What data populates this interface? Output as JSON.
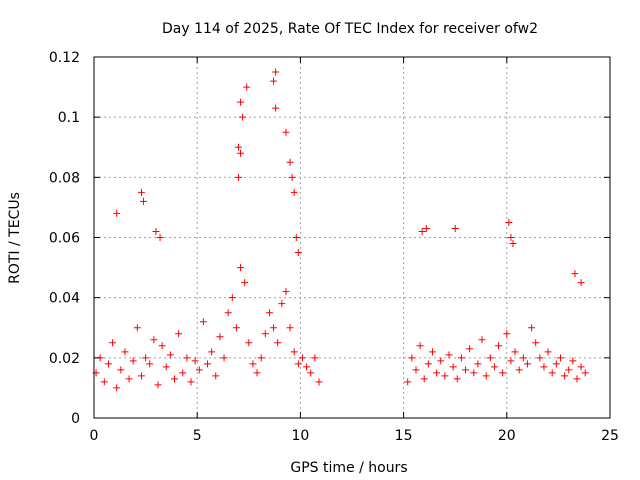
{
  "chart_data": {
    "type": "scatter",
    "title": "Day 114 of 2025, Rate Of TEC Index for receiver ofw2",
    "xlabel": "GPS time / hours",
    "ylabel": "ROTI / TECUs",
    "xlim": [
      0,
      25
    ],
    "ylim": [
      0,
      0.12
    ],
    "xticks": [
      0,
      5,
      10,
      15,
      20,
      25
    ],
    "yticks": [
      0,
      0.02,
      0.04,
      0.06,
      0.08,
      0.1,
      0.12
    ],
    "ytick_labels": [
      "0",
      "0.02",
      "0.04",
      "0.06",
      "0.08",
      "0.1",
      "0.12"
    ],
    "grid": true,
    "marker": "+",
    "color": "#ff0000",
    "data_gap_hours": [
      11.1,
      15.1
    ],
    "series": [
      {
        "x": [
          0.1,
          0.3,
          0.5,
          0.7,
          0.9,
          1.1,
          1.3,
          1.5,
          1.7,
          1.9,
          2.1,
          2.3,
          2.5,
          2.7,
          2.9,
          3.1,
          3.3,
          3.5,
          3.7,
          3.9,
          4.1,
          4.3,
          4.5,
          4.7,
          4.9,
          5.1,
          5.3,
          5.5,
          5.7,
          5.9,
          6.1,
          6.3,
          6.5,
          6.7,
          6.9,
          7.1,
          7.3,
          7.5,
          7.7,
          7.9,
          8.1,
          8.3,
          8.5,
          8.7,
          8.9,
          9.1,
          9.3,
          9.5,
          9.7,
          9.9,
          10.1,
          10.3,
          10.5,
          10.7,
          10.9,
          15.2,
          15.4,
          15.6,
          15.8,
          16.0,
          16.2,
          16.4,
          16.6,
          16.8,
          17.0,
          17.2,
          17.4,
          17.6,
          17.8,
          18.0,
          18.2,
          18.4,
          18.6,
          18.8,
          19.0,
          19.2,
          19.4,
          19.6,
          19.8,
          20.0,
          20.2,
          20.4,
          20.6,
          20.8,
          21.0,
          21.2,
          21.4,
          21.6,
          21.8,
          22.0,
          22.2,
          22.4,
          22.6,
          22.8,
          23.0,
          23.2,
          23.4,
          23.6,
          23.8,
          1.1,
          2.3,
          2.4,
          3.0,
          3.2,
          7.0,
          7.1,
          7.2,
          7.4,
          7.0,
          7.1,
          8.7,
          8.8,
          8.8,
          9.3,
          9.5,
          9.6,
          9.7,
          9.8,
          9.9,
          15.9,
          16.1,
          17.5,
          20.1,
          20.2,
          20.3,
          23.3,
          23.6
        ],
        "y": [
          0.015,
          0.02,
          0.012,
          0.018,
          0.025,
          0.01,
          0.016,
          0.022,
          0.013,
          0.019,
          0.03,
          0.014,
          0.02,
          0.018,
          0.026,
          0.011,
          0.024,
          0.017,
          0.021,
          0.013,
          0.028,
          0.015,
          0.02,
          0.012,
          0.019,
          0.016,
          0.032,
          0.018,
          0.022,
          0.014,
          0.027,
          0.02,
          0.035,
          0.04,
          0.03,
          0.05,
          0.045,
          0.025,
          0.018,
          0.015,
          0.02,
          0.028,
          0.035,
          0.03,
          0.025,
          0.038,
          0.042,
          0.03,
          0.022,
          0.018,
          0.02,
          0.017,
          0.015,
          0.02,
          0.012,
          0.012,
          0.02,
          0.016,
          0.024,
          0.013,
          0.018,
          0.022,
          0.015,
          0.019,
          0.014,
          0.021,
          0.017,
          0.013,
          0.02,
          0.016,
          0.023,
          0.015,
          0.018,
          0.026,
          0.014,
          0.02,
          0.017,
          0.024,
          0.015,
          0.028,
          0.019,
          0.022,
          0.016,
          0.02,
          0.018,
          0.03,
          0.025,
          0.02,
          0.017,
          0.022,
          0.015,
          0.018,
          0.02,
          0.014,
          0.016,
          0.019,
          0.013,
          0.017,
          0.015,
          0.068,
          0.075,
          0.072,
          0.062,
          0.06,
          0.08,
          0.088,
          0.1,
          0.11,
          0.09,
          0.105,
          0.112,
          0.115,
          0.103,
          0.095,
          0.085,
          0.08,
          0.075,
          0.06,
          0.055,
          0.062,
          0.063,
          0.063,
          0.065,
          0.06,
          0.058,
          0.048,
          0.045
        ]
      }
    ]
  }
}
